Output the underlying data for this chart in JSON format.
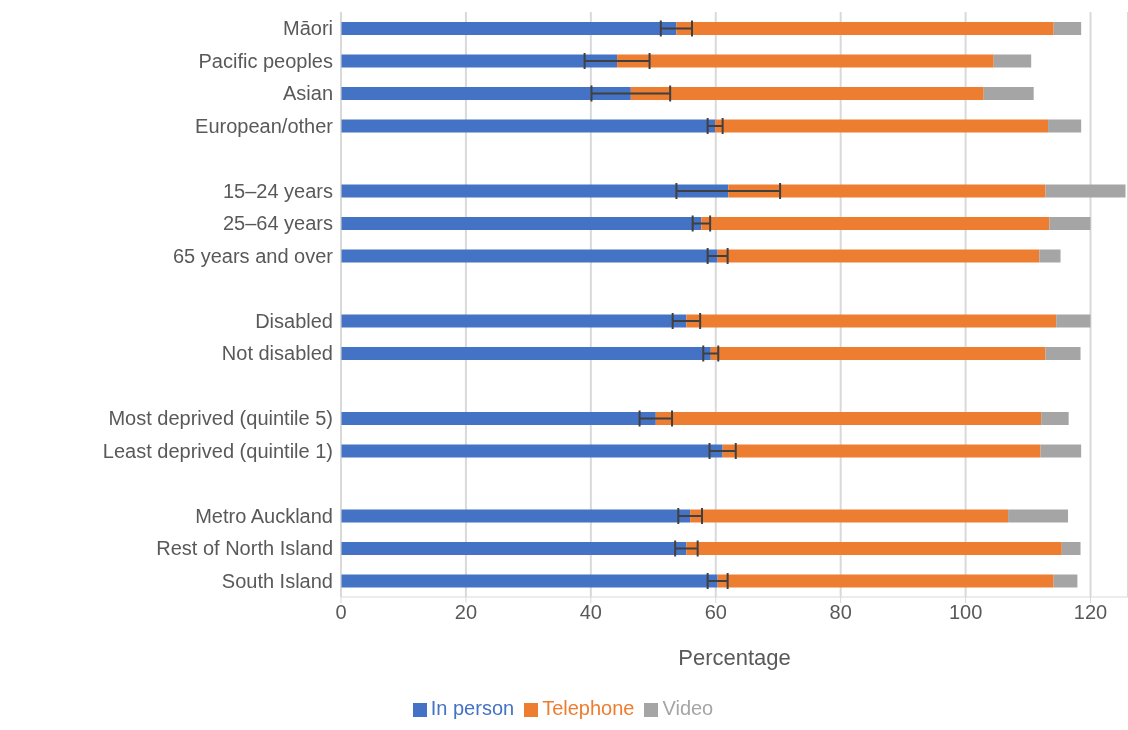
{
  "chart_data": {
    "type": "bar",
    "orientation": "horizontal",
    "stacked": true,
    "xlabel": "Percentage",
    "categories": [
      "Māori",
      "Pacific peoples",
      "Asian",
      "European/other",
      null,
      "15–24 years",
      "25–64 years",
      "65 years and over",
      null,
      "Disabled",
      "Not disabled",
      null,
      "Most deprived (quintile 5)",
      "Least deprived (quintile 1)",
      null,
      "Metro Auckland",
      "Rest of North Island",
      "South Island"
    ],
    "series": [
      {
        "name": "In person",
        "color": "#4472c4",
        "values": [
          53.7,
          44.2,
          46.4,
          59.9,
          null,
          62.0,
          57.7,
          60.3,
          null,
          55.3,
          59.2,
          null,
          50.4,
          61.1,
          null,
          55.9,
          55.3,
          60.3
        ],
        "errors": [
          2.5,
          5.2,
          6.3,
          1.2,
          null,
          8.3,
          1.4,
          1.6,
          null,
          2.2,
          1.2,
          null,
          2.6,
          2.1,
          null,
          1.9,
          1.8,
          1.6
        ]
      },
      {
        "name": "Telephone",
        "color": "#ed7d31",
        "values": [
          60.4,
          60.3,
          56.5,
          53.3,
          null,
          50.8,
          55.7,
          51.5,
          null,
          59.2,
          53.6,
          null,
          61.7,
          50.9,
          null,
          50.9,
          60.1,
          53.8
        ]
      },
      {
        "name": "Video",
        "color": "#a5a5a5",
        "values": [
          4.4,
          6.0,
          8.0,
          5.3,
          null,
          12.8,
          6.6,
          3.4,
          null,
          5.5,
          5.6,
          null,
          4.4,
          6.5,
          null,
          9.6,
          3.0,
          3.8
        ]
      }
    ],
    "xlim": [
      0,
      126
    ],
    "xticks": [
      0,
      20,
      40,
      60,
      80,
      100,
      120
    ],
    "grid": "x",
    "legend": "bottom"
  }
}
